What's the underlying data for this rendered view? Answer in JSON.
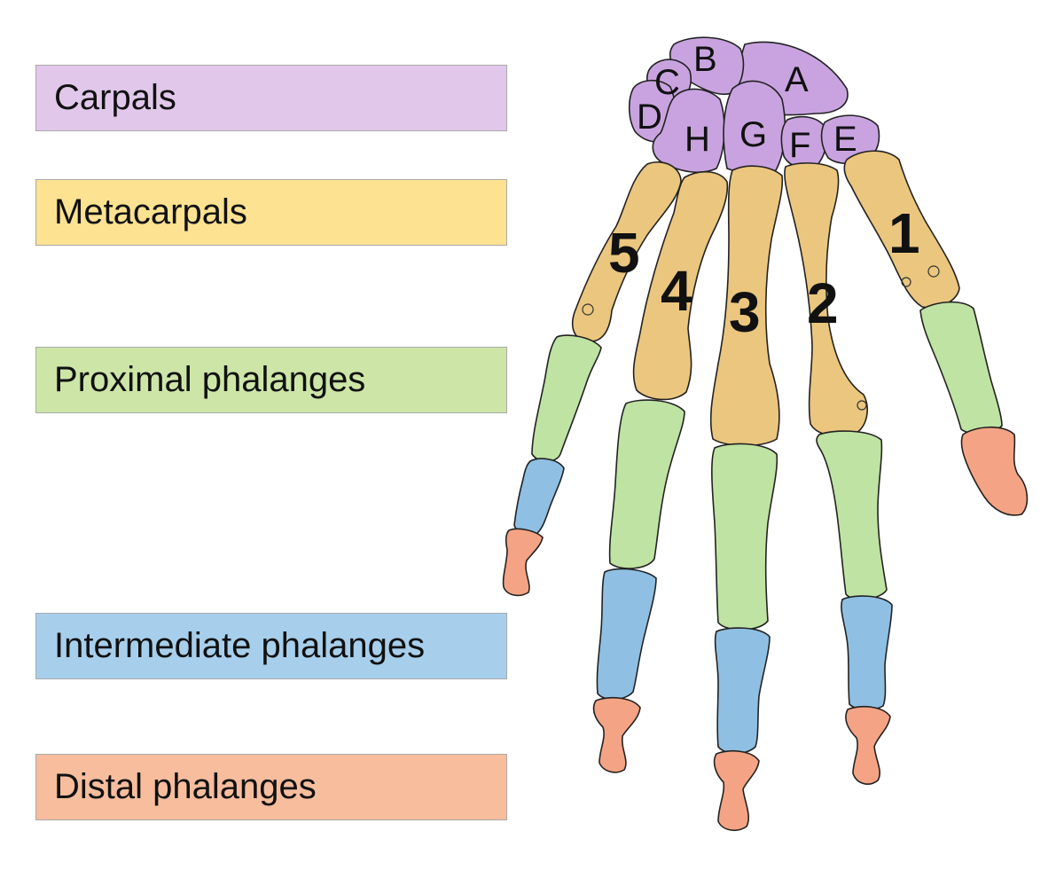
{
  "legend": [
    {
      "label": "Carpals",
      "color": "#e1c8ea"
    },
    {
      "label": "Metacarpals",
      "color": "#fde291"
    },
    {
      "label": "Proximal phalanges",
      "color": "#cde6a8"
    },
    {
      "label": "Intermediate phalanges",
      "color": "#a7cfec"
    },
    {
      "label": "Distal phalanges",
      "color": "#f7bd9d"
    }
  ],
  "bone_colors": {
    "carpal": "#c9a3e0",
    "metacarpal": "#ebc67e",
    "proximal": "#bfe3a3",
    "intermediate": "#8fc0e3",
    "distal": "#f4a484"
  },
  "carpal_letters": [
    "A",
    "B",
    "C",
    "D",
    "E",
    "F",
    "G",
    "H"
  ],
  "digit_numbers": [
    "1",
    "2",
    "3",
    "4",
    "5"
  ]
}
